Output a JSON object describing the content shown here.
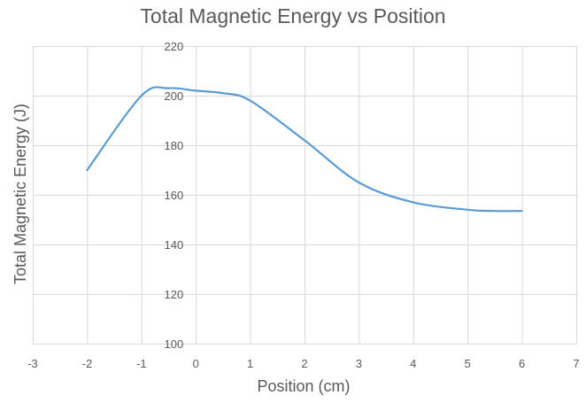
{
  "chart_data": {
    "type": "line",
    "title": "Total Magnetic Energy vs Position",
    "xlabel": "Position (cm)",
    "ylabel": "Total Magnetic Energy (J)",
    "xlim": [
      -3,
      7
    ],
    "ylim": [
      100,
      220
    ],
    "xticks": [
      -3,
      -2,
      -1,
      0,
      1,
      2,
      3,
      4,
      5,
      6,
      7
    ],
    "yticks": [
      100,
      120,
      140,
      160,
      180,
      200,
      220
    ],
    "grid": true,
    "legend": "none",
    "smooth": true,
    "series": [
      {
        "color": "#5b9bd5",
        "x": [
          -2,
          -1,
          -0.5,
          0,
          0.5,
          1,
          2,
          3,
          4,
          5,
          5.5,
          6
        ],
        "y": [
          170,
          200,
          203,
          202,
          201,
          198,
          182,
          165,
          157,
          154,
          153.5,
          153.5
        ]
      }
    ]
  },
  "colors": {
    "grid": "#d9d9d9",
    "tick_text": "#595959",
    "title_text": "#595959"
  }
}
